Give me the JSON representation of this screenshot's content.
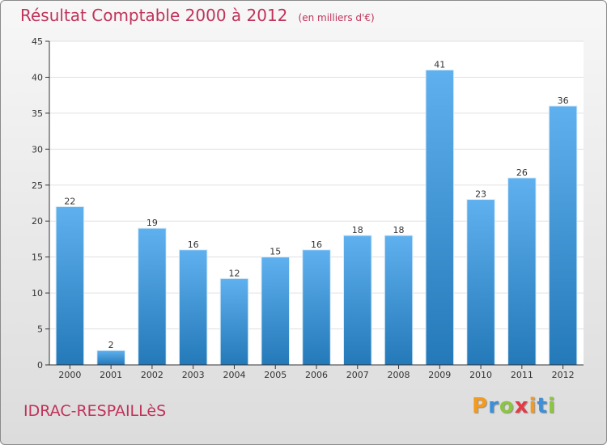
{
  "header": {
    "title": "Résultat Comptable 2000 à 2012",
    "subtitle": "(en milliers d'€)"
  },
  "footer": {
    "commune": "IDRAC-RESPAILLèS",
    "logo_letters": [
      "P",
      "r",
      "o",
      "x",
      "i",
      "t",
      "i"
    ],
    "logo_colors": [
      "#f39a1f",
      "#3c8fd8",
      "#8cc63f",
      "#e63946",
      "#f39a1f",
      "#3c8fd8",
      "#8cc63f"
    ]
  },
  "colors": {
    "bar_top": "#5fb0ee",
    "bar_bottom": "#2479b8",
    "axis": "#333333",
    "grid": "#e0e0e0"
  },
  "chart_data": {
    "type": "bar",
    "title": "Résultat Comptable 2000 à 2012",
    "subtitle": "(en milliers d'€)",
    "xlabel": "",
    "ylabel": "",
    "categories": [
      "2000",
      "2001",
      "2002",
      "2003",
      "2004",
      "2005",
      "2006",
      "2007",
      "2008",
      "2009",
      "2010",
      "2011",
      "2012"
    ],
    "values": [
      22,
      2,
      19,
      16,
      12,
      15,
      16,
      18,
      18,
      41,
      23,
      26,
      36
    ],
    "ylim": [
      0,
      45
    ],
    "yticks": [
      0,
      5,
      10,
      15,
      20,
      25,
      30,
      35,
      40,
      45
    ],
    "grid": true,
    "legend": "none"
  }
}
